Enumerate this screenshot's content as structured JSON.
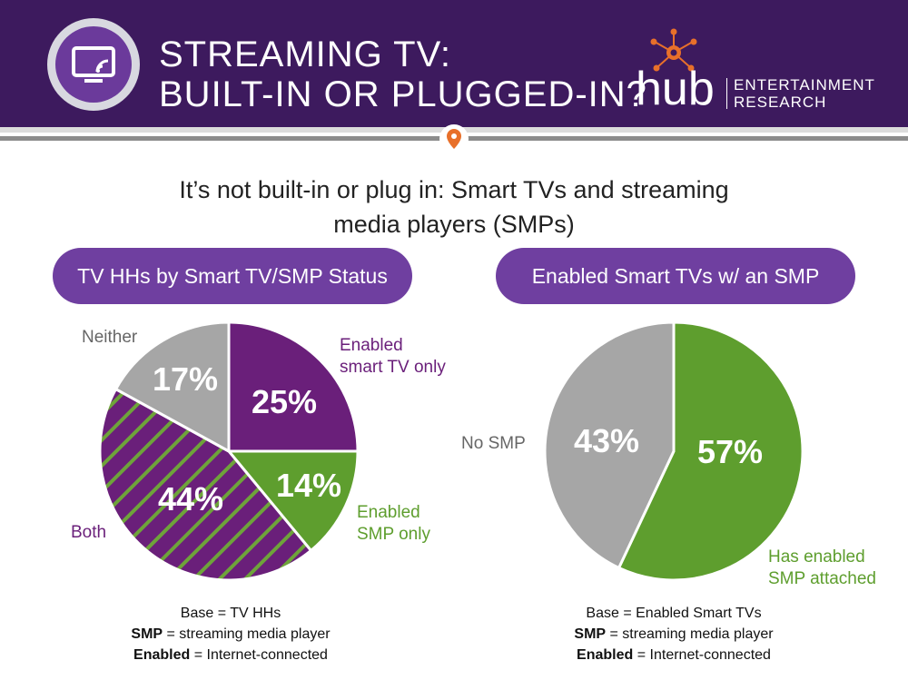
{
  "header": {
    "title_line1": "STREAMING TV:",
    "title_line2": "BUILT-IN OR PLUGGED-IN?",
    "logo": {
      "icon": "tv-cast-icon",
      "brand": "hub",
      "sub_line1": "ENTERTAINMENT",
      "sub_line2": "RESEARCH"
    },
    "colors": {
      "banner": "#3d1a5e",
      "accent_orange": "#e8702a"
    }
  },
  "subtitle_line1": "It’s not built-in or plug in: Smart TVs and streaming",
  "subtitle_line2": "media players (SMPs)",
  "chart_data": [
    {
      "type": "pie",
      "title": "TV HHs by Smart TV/SMP Status",
      "slices": [
        {
          "label_line1": "Enabled",
          "label_line2": "smart TV only",
          "value": 25,
          "value_label": "25%",
          "color": "#6a1f7a"
        },
        {
          "label_line1": "Enabled",
          "label_line2": "SMP only",
          "value": 14,
          "value_label": "14%",
          "color": "#5e9e2e"
        },
        {
          "label_line1": "Both",
          "label_line2": "",
          "value": 44,
          "value_label": "44%",
          "color": "#6a1f7a",
          "pattern": "purple-green hatch"
        },
        {
          "label_line1": "Neither",
          "label_line2": "",
          "value": 17,
          "value_label": "17%",
          "color": "#a6a6a6"
        }
      ],
      "footnote": {
        "base": "Base = TV HHs",
        "smp_key": "SMP",
        "smp_def": "= streaming media player",
        "enabled_key": "Enabled",
        "enabled_def": "= Internet-connected"
      }
    },
    {
      "type": "pie",
      "title": "Enabled Smart TVs w/ an SMP",
      "slices": [
        {
          "label_line1": "Has enabled",
          "label_line2": "SMP attached",
          "value": 57,
          "value_label": "57%",
          "color": "#5e9e2e"
        },
        {
          "label_line1": "No SMP",
          "label_line2": "",
          "value": 43,
          "value_label": "43%",
          "color": "#a6a6a6"
        }
      ],
      "footnote": {
        "base": "Base = Enabled Smart TVs",
        "smp_key": "SMP",
        "smp_def": "= streaming media player",
        "enabled_key": "Enabled",
        "enabled_def": "= Internet-connected"
      }
    }
  ]
}
